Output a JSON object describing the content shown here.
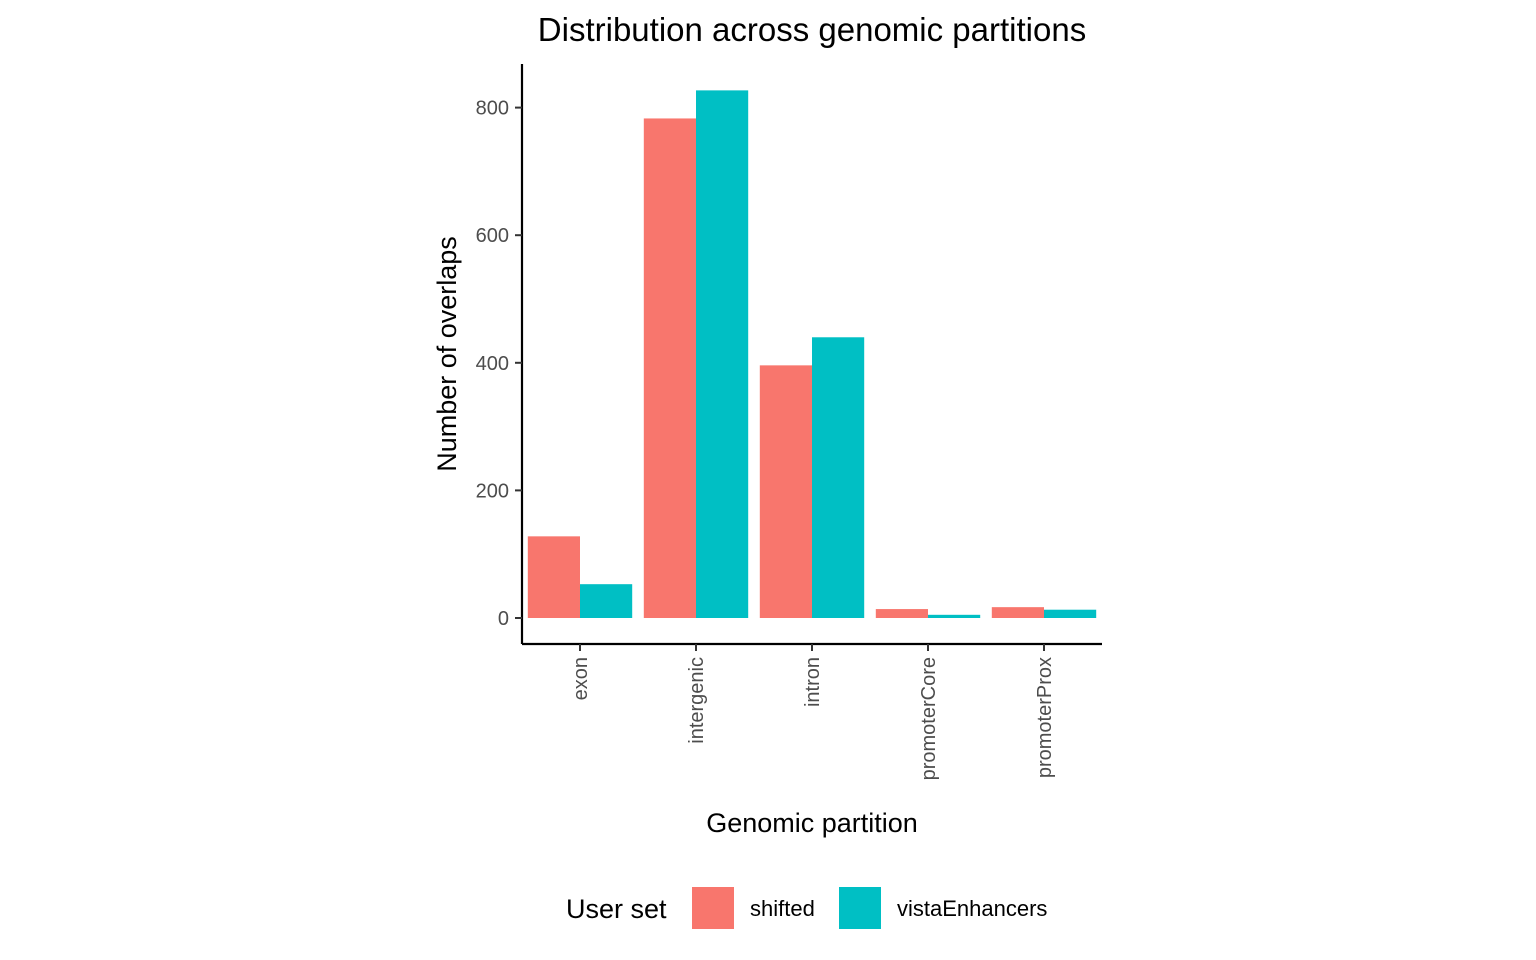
{
  "chart_data": {
    "type": "bar",
    "title": "Distribution across genomic partitions",
    "xlabel": "Genomic partition",
    "ylabel": "Number of overlaps",
    "categories": [
      "exon",
      "intergenic",
      "intron",
      "promoterCore",
      "promoterProx"
    ],
    "series": [
      {
        "name": "shifted",
        "color": "#F8766D",
        "values": [
          128,
          783,
          396,
          14,
          17
        ]
      },
      {
        "name": "vistaEnhancers",
        "color": "#00BFC4",
        "values": [
          53,
          827,
          440,
          5,
          13
        ]
      }
    ],
    "yticks": [
      0,
      200,
      400,
      600,
      800
    ],
    "ylim": [
      -40,
      868
    ],
    "grid": false,
    "legend": {
      "title": "User set",
      "position": "bottom"
    }
  }
}
